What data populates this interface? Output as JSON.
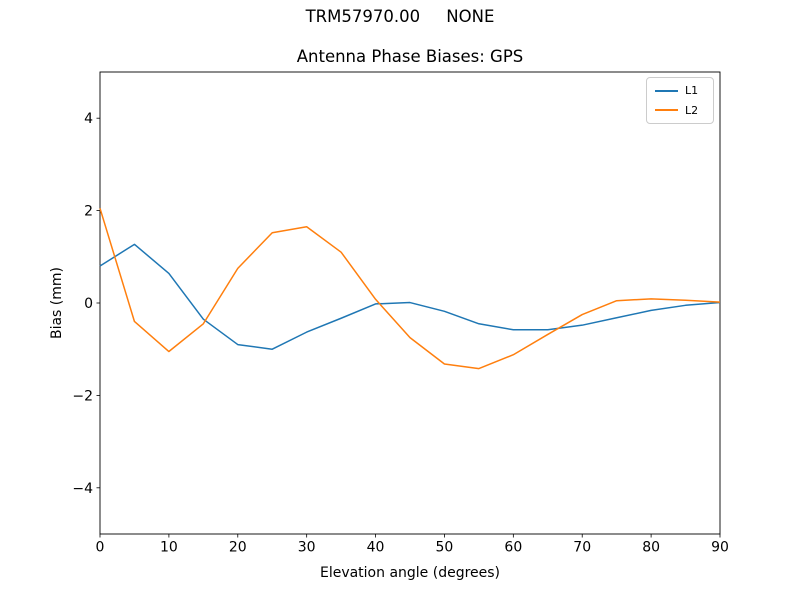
{
  "chart_data": {
    "type": "line",
    "title": "TRM57970.00     NONE",
    "subtitle": "Antenna Phase Biases: GPS",
    "xlabel": "Elevation angle (degrees)",
    "ylabel": "Bias (mm)",
    "xlim": [
      0,
      90
    ],
    "ylim": [
      -5,
      5
    ],
    "x_ticks": [
      0,
      10,
      20,
      30,
      40,
      50,
      60,
      70,
      80,
      90
    ],
    "y_ticks": [
      -4,
      -2,
      0,
      2,
      4
    ],
    "grid": false,
    "legend": {
      "position": "upper right"
    },
    "x": [
      0,
      5,
      10,
      15,
      20,
      25,
      30,
      35,
      40,
      45,
      50,
      55,
      60,
      65,
      70,
      75,
      80,
      85,
      90
    ],
    "series": [
      {
        "name": "L1",
        "color": "#1f77b4",
        "values": [
          0.8,
          1.27,
          0.64,
          -0.35,
          -0.9,
          -1.0,
          -0.63,
          -0.33,
          -0.02,
          0.01,
          -0.18,
          -0.45,
          -0.58,
          -0.58,
          -0.48,
          -0.32,
          -0.16,
          -0.05,
          0.01
        ]
      },
      {
        "name": "L2",
        "color": "#ff7f0e",
        "values": [
          2.05,
          -0.4,
          -1.05,
          -0.45,
          0.75,
          1.52,
          1.65,
          1.1,
          0.08,
          -0.75,
          -1.32,
          -1.42,
          -1.12,
          -0.68,
          -0.25,
          0.05,
          0.09,
          0.06,
          0.02
        ]
      }
    ]
  },
  "colors": {
    "background": "#ffffff",
    "spine": "#000000",
    "text": "#000000",
    "legend_border": "#cccccc",
    "series_l1": "#1f77b4",
    "series_l2": "#ff7f0e"
  }
}
